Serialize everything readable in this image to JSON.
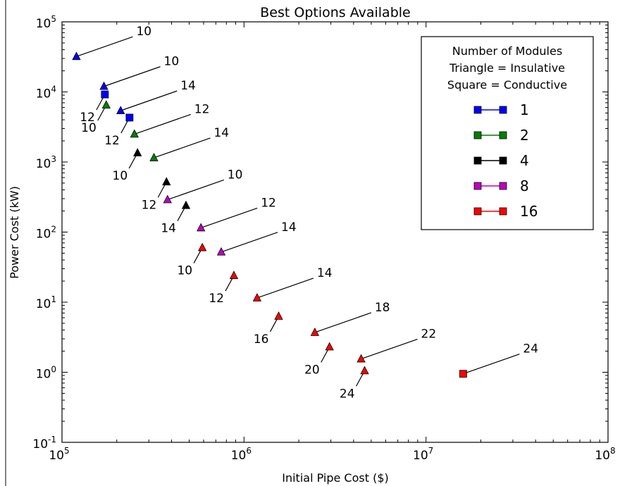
{
  "chart_data": {
    "type": "scatter",
    "title": "Best Options Available",
    "xlabel": "Initial Pipe Cost ($)",
    "ylabel": "Power Cost (kW)",
    "xscale": "log",
    "yscale": "log",
    "xlim": [
      100000,
      100000000
    ],
    "ylim": [
      0.1,
      100000
    ],
    "x_ticks": [
      {
        "value": 100000,
        "base": "10",
        "exp": "5"
      },
      {
        "value": 1000000,
        "base": "10",
        "exp": "6"
      },
      {
        "value": 10000000,
        "base": "10",
        "exp": "7"
      },
      {
        "value": 100000000,
        "base": "10",
        "exp": "8"
      }
    ],
    "y_ticks": [
      {
        "value": 0.1,
        "base": "10",
        "exp": "-1"
      },
      {
        "value": 1,
        "base": "10",
        "exp": "0"
      },
      {
        "value": 10,
        "base": "10",
        "exp": "1"
      },
      {
        "value": 100,
        "base": "10",
        "exp": "2"
      },
      {
        "value": 1000,
        "base": "10",
        "exp": "3"
      },
      {
        "value": 10000,
        "base": "10",
        "exp": "4"
      },
      {
        "value": 100000,
        "base": "10",
        "exp": "5"
      }
    ],
    "grid": false,
    "legend": {
      "title_lines": [
        "Number of Modules",
        "Triangle = Insulative",
        "Square = Conductive"
      ],
      "placement": "top-right",
      "entries": [
        {
          "label": "1",
          "color": "#0000ff"
        },
        {
          "label": "2",
          "color": "#007f00"
        },
        {
          "label": "4",
          "color": "#000000"
        },
        {
          "label": "8",
          "color": "#bf00bf"
        },
        {
          "label": "16",
          "color": "#ff0000"
        }
      ]
    },
    "series": [
      {
        "name": "1",
        "color": "#0000ff",
        "points": [
          {
            "x": 120000,
            "y": 32000,
            "marker": "triangle",
            "label": "10",
            "label_dir": "up-right"
          },
          {
            "x": 170000,
            "y": 12000,
            "marker": "triangle",
            "label": "10",
            "label_dir": "up-right"
          },
          {
            "x": 172000,
            "y": 9200,
            "marker": "square",
            "label": "12",
            "label_dir": "down-left"
          },
          {
            "x": 210000,
            "y": 5400,
            "marker": "triangle",
            "label": "14",
            "label_dir": "up-right"
          },
          {
            "x": 235000,
            "y": 4300,
            "marker": "square",
            "label": "12",
            "label_dir": "down-left"
          }
        ]
      },
      {
        "name": "2",
        "color": "#007f00",
        "points": [
          {
            "x": 175000,
            "y": 6500,
            "marker": "triangle",
            "label": "10",
            "label_dir": "down-left"
          },
          {
            "x": 250000,
            "y": 2500,
            "marker": "triangle",
            "label": "12",
            "label_dir": "up-right"
          },
          {
            "x": 320000,
            "y": 1150,
            "marker": "triangle",
            "label": "14",
            "label_dir": "up-right"
          }
        ]
      },
      {
        "name": "4",
        "color": "#000000",
        "points": [
          {
            "x": 260000,
            "y": 1350,
            "marker": "triangle",
            "label": "10",
            "label_dir": "down-left"
          },
          {
            "x": 375000,
            "y": 520,
            "marker": "triangle",
            "label": "12",
            "label_dir": "down-left"
          },
          {
            "x": 480000,
            "y": 240,
            "marker": "triangle",
            "label": "14",
            "label_dir": "down-left"
          }
        ]
      },
      {
        "name": "8",
        "color": "#bf00bf",
        "points": [
          {
            "x": 380000,
            "y": 290,
            "marker": "triangle",
            "label": "10",
            "label_dir": "up-right"
          },
          {
            "x": 580000,
            "y": 115,
            "marker": "triangle",
            "label": "12",
            "label_dir": "up-right"
          },
          {
            "x": 750000,
            "y": 52,
            "marker": "triangle",
            "label": "14",
            "label_dir": "up-right"
          }
        ]
      },
      {
        "name": "16",
        "color": "#ff0000",
        "points": [
          {
            "x": 590000,
            "y": 60,
            "marker": "triangle",
            "label": "10",
            "label_dir": "down-left"
          },
          {
            "x": 880000,
            "y": 24,
            "marker": "triangle",
            "label": "12",
            "label_dir": "down-left"
          },
          {
            "x": 1180000,
            "y": 11.5,
            "marker": "triangle",
            "label": "14",
            "label_dir": "up-right"
          },
          {
            "x": 1550000,
            "y": 6.3,
            "marker": "triangle",
            "label": "16",
            "label_dir": "down-left"
          },
          {
            "x": 2450000,
            "y": 3.7,
            "marker": "triangle",
            "label": "18",
            "label_dir": "up-right"
          },
          {
            "x": 2950000,
            "y": 2.3,
            "marker": "triangle",
            "label": "20",
            "label_dir": "down-left"
          },
          {
            "x": 4400000,
            "y": 1.55,
            "marker": "triangle",
            "label": "22",
            "label_dir": "up-right"
          },
          {
            "x": 4600000,
            "y": 1.05,
            "marker": "triangle",
            "label": "24",
            "label_dir": "down-left"
          },
          {
            "x": 16000000,
            "y": 0.95,
            "marker": "square",
            "label": "24",
            "label_dir": "up-right"
          }
        ]
      }
    ]
  }
}
